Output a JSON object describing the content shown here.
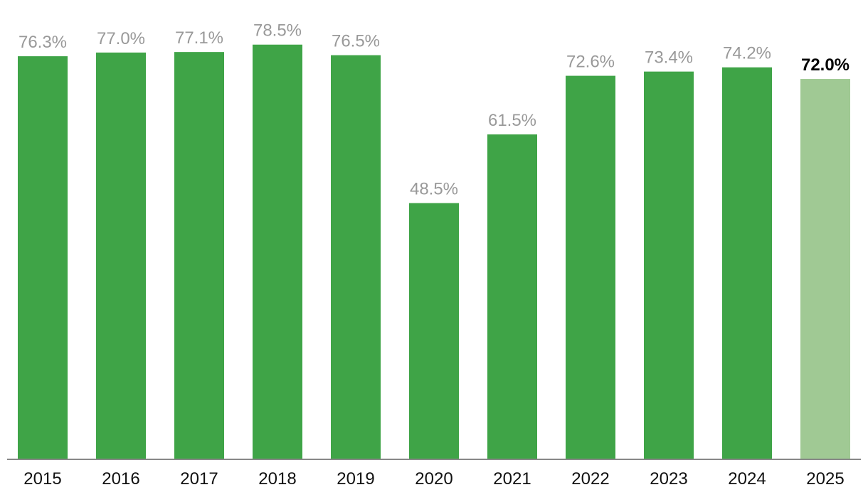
{
  "chart_data": {
    "type": "bar",
    "categories": [
      "2015",
      "2016",
      "2017",
      "2018",
      "2019",
      "2020",
      "2021",
      "2022",
      "2023",
      "2024",
      "2025"
    ],
    "values": [
      76.3,
      77.0,
      77.1,
      78.5,
      76.5,
      48.5,
      61.5,
      72.6,
      73.4,
      74.2,
      72.0
    ],
    "value_labels": [
      "76.3%",
      "77.0%",
      "77.1%",
      "78.5%",
      "76.5%",
      "48.5%",
      "61.5%",
      "72.6%",
      "73.4%",
      "74.2%",
      "72.0%"
    ],
    "highlighted_category": "2025",
    "ylim": [
      0,
      80
    ],
    "grid": false,
    "legend": "none",
    "colors": {
      "bar": "#3fa447",
      "bar_highlight": "#a0c994",
      "label": "#999999",
      "label_highlight": "#000000",
      "axis": "#888888",
      "tick_text": "#111111"
    }
  }
}
